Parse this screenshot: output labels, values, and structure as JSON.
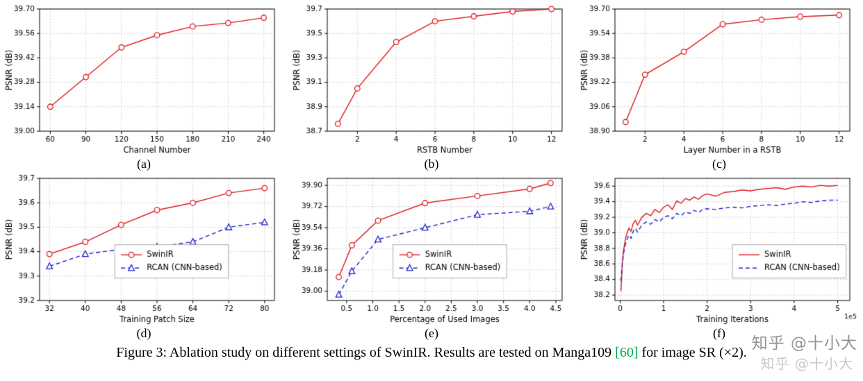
{
  "caption": {
    "part1": "Figure 3: Ablation study on different settings of SwinIR. Results are tested on Manga109 ",
    "ref": "[60]",
    "part2": " for image SR (×2)."
  },
  "watermark": {
    "primary": "知乎 @十小大",
    "secondary": "知乎 @十小大"
  },
  "colors": {
    "swinir_red": "#e0191c",
    "rcan_blue": "#2222cc",
    "reference_green": "#00a651",
    "watermark_gray": "#808080",
    "grid_gray": "#c9c9c9"
  },
  "chart_data": [
    {
      "id": "a",
      "type": "line",
      "sublabel": "(a)",
      "xlabel": "Channel Number",
      "ylabel": "PSNR (dB)",
      "xlim": [
        51,
        249
      ],
      "ylim": [
        39.0,
        39.7
      ],
      "xticks": [
        60,
        90,
        120,
        150,
        180,
        210,
        240
      ],
      "xtick_labels": [
        "60",
        "90",
        "120",
        "150",
        "180",
        "210",
        "240"
      ],
      "yticks": [
        39.0,
        39.14,
        39.28,
        39.42,
        39.56,
        39.7
      ],
      "ytick_labels": [
        "39.00",
        "39.14",
        "39.28",
        "39.42",
        "39.56",
        "39.70"
      ],
      "grid": true,
      "legend": null,
      "series": [
        {
          "name": "SwinIR",
          "color": "#e0191c",
          "dash": false,
          "marker": "circle",
          "x": [
            60,
            90,
            120,
            150,
            180,
            210,
            240
          ],
          "y": [
            39.14,
            39.31,
            39.48,
            39.55,
            39.6,
            39.62,
            39.65
          ]
        }
      ]
    },
    {
      "id": "b",
      "type": "line",
      "sublabel": "(b)",
      "xlabel": "RSTB Number",
      "ylabel": "PSNR (dB)",
      "xlim": [
        0.45,
        12.55
      ],
      "ylim": [
        38.7,
        39.7
      ],
      "xticks": [
        2,
        4,
        6,
        8,
        10,
        12
      ],
      "xtick_labels": [
        "2",
        "4",
        "6",
        "8",
        "10",
        "12"
      ],
      "yticks": [
        38.7,
        38.9,
        39.1,
        39.3,
        39.5,
        39.7
      ],
      "ytick_labels": [
        "38.7",
        "38.9",
        "39.1",
        "39.3",
        "39.5",
        "39.7"
      ],
      "grid": true,
      "legend": null,
      "series": [
        {
          "name": "SwinIR",
          "color": "#e0191c",
          "dash": false,
          "marker": "circle",
          "x": [
            1,
            2,
            4,
            6,
            8,
            10,
            12
          ],
          "y": [
            38.76,
            39.05,
            39.43,
            39.6,
            39.64,
            39.68,
            39.7
          ]
        }
      ]
    },
    {
      "id": "c",
      "type": "line",
      "sublabel": "(c)",
      "xlabel": "Layer Number in a RSTB",
      "ylabel": "PSNR (dB)",
      "xlim": [
        0.45,
        12.55
      ],
      "ylim": [
        38.9,
        39.7
      ],
      "xticks": [
        2,
        4,
        6,
        8,
        10,
        12
      ],
      "xtick_labels": [
        "2",
        "4",
        "6",
        "8",
        "10",
        "12"
      ],
      "yticks": [
        38.9,
        39.06,
        39.22,
        39.38,
        39.54,
        39.7
      ],
      "ytick_labels": [
        "38.90",
        "39.06",
        "39.22",
        "39.38",
        "39.54",
        "39.70"
      ],
      "grid": true,
      "legend": null,
      "series": [
        {
          "name": "SwinIR",
          "color": "#e0191c",
          "dash": false,
          "marker": "circle",
          "x": [
            1,
            2,
            4,
            6,
            8,
            10,
            12
          ],
          "y": [
            38.96,
            39.27,
            39.42,
            39.6,
            39.63,
            39.65,
            39.66
          ]
        }
      ]
    },
    {
      "id": "d",
      "type": "line",
      "sublabel": "(d)",
      "xlabel": "Training Patch Size",
      "ylabel": "PSNR (dB)",
      "xlim": [
        29.8,
        82.2
      ],
      "ylim": [
        39.2,
        39.7
      ],
      "xticks": [
        32,
        40,
        48,
        56,
        64,
        72,
        80
      ],
      "xtick_labels": [
        "32",
        "40",
        "48",
        "56",
        "64",
        "72",
        "80"
      ],
      "yticks": [
        39.2,
        39.3,
        39.4,
        39.5,
        39.6,
        39.7
      ],
      "ytick_labels": [
        "39.2",
        "39.3",
        "39.4",
        "39.5",
        "39.6",
        "39.7"
      ],
      "grid": true,
      "legend": {
        "x": 0.32,
        "y": 0.68
      },
      "series": [
        {
          "name": "SwinIR",
          "color": "#e0191c",
          "dash": false,
          "marker": "circle",
          "x": [
            32,
            40,
            48,
            56,
            64,
            72,
            80
          ],
          "y": [
            39.39,
            39.44,
            39.51,
            39.57,
            39.6,
            39.64,
            39.66
          ]
        },
        {
          "name": "RCAN (CNN-based)",
          "color": "#2222cc",
          "dash": true,
          "marker": "triangle",
          "x": [
            32,
            40,
            48,
            56,
            64,
            72,
            80
          ],
          "y": [
            39.34,
            39.39,
            39.41,
            39.42,
            39.44,
            39.5,
            39.52
          ]
        }
      ]
    },
    {
      "id": "e",
      "type": "line",
      "sublabel": "(e)",
      "xlabel": "Percentage of Used Images",
      "ylabel": "PSNR (dB)",
      "xlim": [
        0.13,
        4.62
      ],
      "ylim": [
        38.92,
        39.96
      ],
      "xticks": [
        0.5,
        1.0,
        1.5,
        2.0,
        2.5,
        3.0,
        3.5,
        4.0,
        4.5
      ],
      "xtick_labels": [
        "0.5",
        "1.0",
        "1.5",
        "2.0",
        "2.5",
        "3.0",
        "3.5",
        "4.0",
        "4.5"
      ],
      "yticks": [
        39.0,
        39.18,
        39.36,
        39.54,
        39.72,
        39.9
      ],
      "ytick_labels": [
        "39.00",
        "39.18",
        "39.36",
        "39.54",
        "39.72",
        "39.90"
      ],
      "grid": true,
      "legend": {
        "x": 0.28,
        "y": 0.68
      },
      "series": [
        {
          "name": "SwinIR",
          "color": "#e0191c",
          "dash": false,
          "marker": "circle",
          "x": [
            0.35,
            0.6,
            1.1,
            2.0,
            3.0,
            4.0,
            4.4
          ],
          "y": [
            39.12,
            39.39,
            39.6,
            39.75,
            39.81,
            39.87,
            39.92
          ]
        },
        {
          "name": "RCAN (CNN-based)",
          "color": "#2222cc",
          "dash": true,
          "marker": "triangle",
          "x": [
            0.35,
            0.6,
            1.1,
            2.0,
            3.0,
            4.0,
            4.4
          ],
          "y": [
            38.97,
            39.17,
            39.44,
            39.54,
            39.65,
            39.68,
            39.72
          ]
        }
      ]
    },
    {
      "id": "f",
      "type": "line",
      "sublabel": "(f)",
      "xlabel": "Training Iterations",
      "ylabel": "PSNR (dB)",
      "x_offset_label": "1e5",
      "xlim": [
        -0.12,
        5.28
      ],
      "ylim": [
        38.13,
        39.7
      ],
      "xticks": [
        0,
        1,
        2,
        3,
        4,
        5
      ],
      "xtick_labels": [
        "0",
        "1",
        "2",
        "3",
        "4",
        "5"
      ],
      "yticks": [
        38.2,
        38.4,
        38.6,
        38.8,
        39.0,
        39.2,
        39.4,
        39.6
      ],
      "ytick_labels": [
        "38.2",
        "38.4",
        "38.6",
        "38.8",
        "39.0",
        "39.2",
        "39.4",
        "39.6"
      ],
      "grid": true,
      "legend": {
        "x": 0.5,
        "y": 0.68
      },
      "series": [
        {
          "name": "SwinIR",
          "color": "#e0191c",
          "dash": false,
          "marker": null,
          "x": [
            0.02,
            0.05,
            0.08,
            0.12,
            0.16,
            0.2,
            0.25,
            0.3,
            0.35,
            0.4,
            0.5,
            0.6,
            0.7,
            0.8,
            0.9,
            1.0,
            1.1,
            1.2,
            1.3,
            1.4,
            1.5,
            1.6,
            1.7,
            1.8,
            1.9,
            2.0,
            2.2,
            2.4,
            2.6,
            2.8,
            3.0,
            3.2,
            3.4,
            3.6,
            3.8,
            4.0,
            4.2,
            4.4,
            4.6,
            4.8,
            5.0
          ],
          "y": [
            38.25,
            38.62,
            38.78,
            38.92,
            39.0,
            39.06,
            39.02,
            39.12,
            39.16,
            39.1,
            39.2,
            39.25,
            39.22,
            39.3,
            39.26,
            39.33,
            39.36,
            39.3,
            39.41,
            39.38,
            39.44,
            39.42,
            39.46,
            39.43,
            39.48,
            39.5,
            39.47,
            39.52,
            39.53,
            39.55,
            39.54,
            39.56,
            39.57,
            39.58,
            39.56,
            39.59,
            39.6,
            39.59,
            39.61,
            39.6,
            39.61
          ]
        },
        {
          "name": "RCAN (CNN-based)",
          "color": "#2222cc",
          "dash": true,
          "marker": null,
          "x": [
            0.02,
            0.05,
            0.08,
            0.12,
            0.16,
            0.2,
            0.25,
            0.3,
            0.35,
            0.4,
            0.5,
            0.6,
            0.7,
            0.8,
            0.9,
            1.0,
            1.1,
            1.2,
            1.3,
            1.4,
            1.5,
            1.6,
            1.7,
            1.8,
            1.9,
            2.0,
            2.2,
            2.4,
            2.6,
            2.8,
            3.0,
            3.2,
            3.4,
            3.6,
            3.8,
            4.0,
            4.2,
            4.4,
            4.6,
            4.8,
            5.0
          ],
          "y": [
            38.38,
            38.6,
            38.74,
            38.85,
            38.92,
            38.97,
            38.93,
            39.02,
            39.06,
            39.01,
            39.1,
            39.14,
            39.11,
            39.17,
            39.14,
            39.2,
            39.22,
            39.18,
            39.25,
            39.22,
            39.27,
            39.25,
            39.29,
            39.26,
            39.3,
            39.31,
            39.3,
            39.32,
            39.33,
            39.32,
            39.34,
            39.35,
            39.36,
            39.35,
            39.37,
            39.38,
            39.4,
            39.39,
            39.41,
            39.42,
            39.42
          ]
        }
      ]
    }
  ]
}
